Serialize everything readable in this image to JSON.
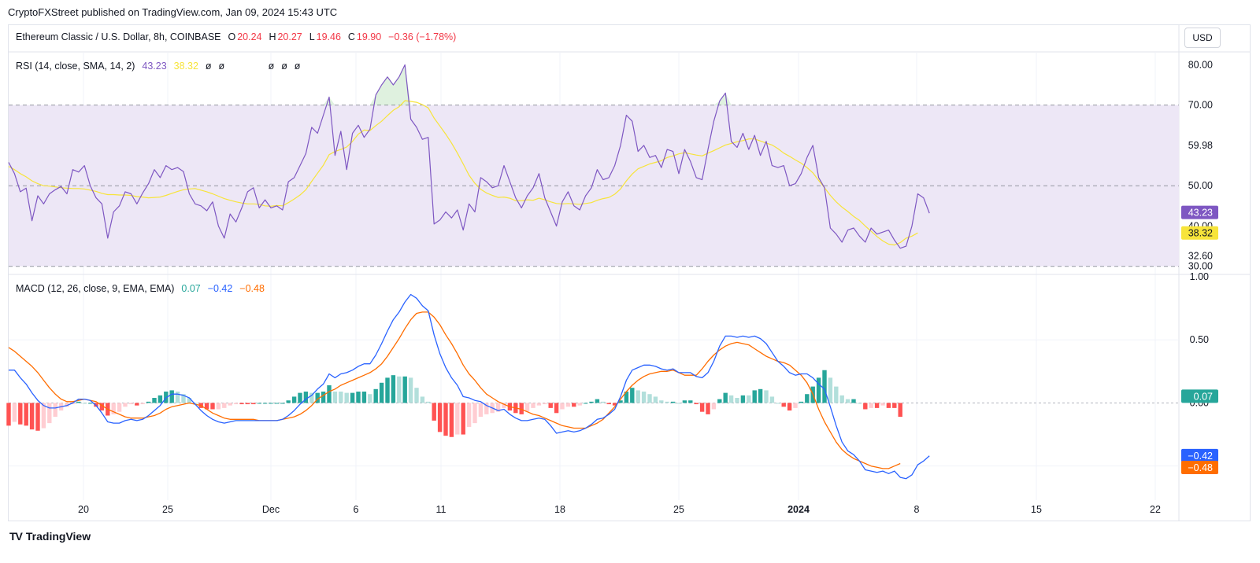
{
  "publisher": "CryptoFXStreet published on TradingView.com, Jan 09, 2024 15:43 UTC",
  "header": {
    "symbol": "Ethereum Classic / U.S. Dollar, 8h, COINBASE",
    "o_label": "O",
    "o_value": "20.24",
    "h_label": "H",
    "h_value": "20.27",
    "l_label": "L",
    "l_value": "19.46",
    "c_label": "C",
    "c_value": "19.90",
    "change": "−0.36 (−1.78%)",
    "currency_button": "USD"
  },
  "rsi_legend": {
    "label": "RSI (14, close, SMA, 14, 2)",
    "rsi": "43.23",
    "ma": "38.32",
    "na": [
      "ø",
      "ø",
      "ø",
      "ø",
      "ø"
    ]
  },
  "macd_legend": {
    "label": "MACD (12, 26, close, 9, EMA, EMA)",
    "hist": "0.07",
    "macd": "−0.42",
    "signal": "−0.48"
  },
  "footer": {
    "brand": "TradingView",
    "logo": "TV"
  },
  "colors": {
    "rsi": "#7e57c2",
    "rsi_ma": "#f7e43a",
    "macd": "#2962ff",
    "signal": "#ff6d00",
    "hist_up_strong": "#26a69a",
    "hist_up_weak": "#b2dfdb",
    "hist_down_strong": "#ff5252",
    "hist_down_weak": "#ffcdd2",
    "band": "#ede7f6",
    "neg": "#f23645"
  },
  "chart_data": [
    {
      "type": "line",
      "title": "RSI (14, close, SMA, 14, 2)",
      "x_axis": {
        "ticks": [
          "20",
          "25",
          "Dec",
          "6",
          "11",
          "18",
          "25",
          "2024",
          "8",
          "15",
          "22"
        ],
        "bold": [
          "2024"
        ]
      },
      "y_ticks": [
        "80.00",
        "70.00",
        "59.98",
        "50.00",
        "40.00",
        "32.60",
        "30.00"
      ],
      "ylim": [
        28,
        83
      ],
      "bands": {
        "upper": 70,
        "middle": 50,
        "lower": 30
      },
      "last_value_labels": [
        "43.23",
        "38.32"
      ],
      "series": [
        {
          "name": "RSI",
          "values": [
            55.8,
            53.0,
            48.5,
            49.4,
            41.3,
            47.5,
            45.5,
            48.0,
            49.0,
            49.8,
            48.0,
            54.0,
            53.4,
            55.0,
            50.0,
            47.0,
            45.5,
            37.0,
            43.5,
            45.0,
            48.5,
            48.0,
            45.5,
            48.2,
            50.5,
            54.0,
            52.0,
            55.0,
            54.0,
            54.5,
            53.5,
            48.0,
            45.5,
            45.0,
            43.8,
            46.0,
            40.0,
            37.0,
            43.0,
            41.0,
            44.5,
            48.5,
            49.5,
            44.5,
            46.5,
            44.5,
            45.0,
            44.0,
            51.0,
            52.0,
            55.0,
            58.0,
            64.5,
            63.0,
            67.5,
            72.0,
            57.5,
            63.5,
            54.0,
            63.0,
            65.0,
            62.0,
            64.0,
            72.5,
            75.0,
            77.0,
            75.0,
            77.0,
            80.0,
            66.5,
            64.5,
            61.5,
            62.0,
            40.5,
            41.5,
            43.5,
            42.0,
            44.0,
            39.0,
            45.5,
            43.5,
            52.0,
            51.0,
            49.5,
            50.0,
            55.0,
            51.0,
            47.0,
            44.5,
            47.5,
            49.5,
            53.0,
            47.0,
            43.5,
            40.0,
            46.0,
            48.5,
            45.0,
            44.0,
            47.5,
            49.5,
            54.0,
            51.5,
            52.0,
            55.0,
            60.0,
            67.5,
            66.0,
            58.5,
            60.0,
            57.0,
            57.5,
            54.5,
            59.0,
            58.5,
            53.0,
            59.0,
            56.0,
            52.0,
            51.5,
            59.0,
            66.0,
            71.0,
            73.0,
            61.0,
            59.5,
            63.0,
            59.0,
            62.5,
            57.5,
            61.0,
            55.0,
            54.5,
            55.0,
            50.0,
            50.5,
            53.0,
            57.0,
            60.0,
            52.0,
            49.5,
            39.5,
            38.0,
            36.0,
            39.0,
            39.5,
            37.5,
            36.0,
            39.5,
            38.0,
            38.5,
            39.0,
            36.5,
            34.5,
            35.0,
            40.0,
            48.0,
            47.0,
            43.2
          ]
        },
        {
          "name": "RSI MA",
          "values": [
            54.8,
            54.0,
            53.0,
            52.2,
            51.2,
            50.5,
            50.0,
            49.9,
            49.7,
            49.5,
            49.4,
            49.3,
            49.3,
            49.2,
            48.9,
            48.6,
            48.1,
            47.8,
            47.8,
            47.7,
            47.7,
            47.6,
            47.3,
            47.2,
            47.0,
            47.1,
            47.2,
            47.6,
            48.1,
            48.6,
            49.0,
            49.2,
            49.3,
            48.9,
            48.5,
            48.0,
            47.4,
            46.8,
            46.4,
            46.0,
            45.7,
            45.5,
            45.5,
            45.4,
            45.0,
            44.9,
            45.1,
            45.0,
            45.8,
            46.7,
            47.7,
            49.0,
            51.1,
            53.1,
            55.1,
            57.7,
            58.5,
            59.0,
            59.6,
            61.0,
            62.8,
            63.8,
            63.7,
            64.9,
            66.0,
            67.4,
            68.7,
            69.6,
            71.1,
            70.9,
            70.7,
            70.1,
            69.3,
            66.8,
            64.8,
            62.8,
            60.6,
            58.1,
            55.4,
            52.6,
            50.6,
            49.1,
            48.2,
            47.6,
            47.1,
            47.2,
            46.9,
            46.3,
            46.3,
            46.5,
            46.4,
            46.9,
            46.5,
            46.0,
            45.6,
            45.5,
            45.6,
            45.5,
            45.4,
            45.6,
            45.8,
            46.4,
            46.8,
            47.1,
            47.9,
            49.2,
            51.2,
            52.9,
            54.2,
            54.8,
            55.4,
            55.8,
            56.2,
            57.0,
            57.4,
            57.9,
            58.2,
            57.9,
            57.6,
            57.4,
            58.1,
            58.7,
            59.4,
            60.1,
            60.5,
            60.9,
            61.2,
            61.6,
            61.6,
            61.1,
            60.6,
            60.1,
            59.2,
            58.1,
            57.3,
            56.4,
            55.6,
            54.5,
            53.2,
            51.3,
            49.5,
            47.6,
            46.0,
            44.7,
            43.6,
            42.4,
            41.4,
            40.0,
            38.7,
            37.4,
            36.3,
            35.5,
            35.3,
            35.9,
            37.0,
            37.5,
            38.3
          ]
        }
      ]
    },
    {
      "type": "bar",
      "title": "MACD (12, 26, close, 9, EMA, EMA)",
      "y_ticks": [
        "1.00",
        "0.50",
        "0.00"
      ],
      "ylim": [
        -0.77,
        1.0
      ],
      "last_value_labels": [
        "0.07",
        "−0.42",
        "−0.48"
      ],
      "series": [
        {
          "name": "MACD",
          "values": [
            0.26,
            0.26,
            0.2,
            0.15,
            0.08,
            0.02,
            -0.02,
            -0.04,
            -0.04,
            -0.03,
            -0.02,
            0.0,
            0.03,
            0.03,
            0.02,
            -0.02,
            -0.08,
            -0.15,
            -0.16,
            -0.16,
            -0.14,
            -0.13,
            -0.14,
            -0.13,
            -0.1,
            -0.06,
            -0.02,
            0.04,
            0.07,
            0.07,
            0.06,
            0.04,
            -0.01,
            -0.06,
            -0.1,
            -0.13,
            -0.15,
            -0.16,
            -0.15,
            -0.14,
            -0.14,
            -0.14,
            -0.14,
            -0.14,
            -0.14,
            -0.14,
            -0.14,
            -0.13,
            -0.1,
            -0.06,
            -0.01,
            0.03,
            0.06,
            0.11,
            0.15,
            0.23,
            0.2,
            0.23,
            0.24,
            0.26,
            0.29,
            0.31,
            0.31,
            0.38,
            0.47,
            0.57,
            0.66,
            0.72,
            0.8,
            0.86,
            0.83,
            0.77,
            0.73,
            0.54,
            0.39,
            0.28,
            0.2,
            0.14,
            0.05,
            0.04,
            0.02,
            0.01,
            -0.02,
            -0.04,
            -0.06,
            -0.05,
            -0.09,
            -0.12,
            -0.14,
            -0.14,
            -0.13,
            -0.12,
            -0.13,
            -0.18,
            -0.24,
            -0.23,
            -0.22,
            -0.23,
            -0.22,
            -0.2,
            -0.17,
            -0.13,
            -0.12,
            -0.09,
            -0.05,
            0.05,
            0.18,
            0.26,
            0.28,
            0.3,
            0.3,
            0.29,
            0.27,
            0.26,
            0.27,
            0.24,
            0.24,
            0.24,
            0.21,
            0.2,
            0.24,
            0.33,
            0.45,
            0.53,
            0.53,
            0.52,
            0.53,
            0.52,
            0.53,
            0.51,
            0.47,
            0.4,
            0.33,
            0.29,
            0.24,
            0.22,
            0.23,
            0.23,
            0.2,
            0.15,
            0.11,
            -0.03,
            -0.18,
            -0.31,
            -0.38,
            -0.41,
            -0.46,
            -0.53,
            -0.54,
            -0.55,
            -0.54,
            -0.56,
            -0.54,
            -0.59,
            -0.6,
            -0.57,
            -0.49,
            -0.46,
            -0.42
          ]
        },
        {
          "name": "Signal",
          "values": [
            0.44,
            0.41,
            0.37,
            0.33,
            0.29,
            0.24,
            0.18,
            0.12,
            0.07,
            0.03,
            0.01,
            0.01,
            0.02,
            0.03,
            0.02,
            0.01,
            -0.02,
            -0.05,
            -0.07,
            -0.09,
            -0.11,
            -0.12,
            -0.12,
            -0.12,
            -0.11,
            -0.1,
            -0.08,
            -0.05,
            -0.03,
            -0.02,
            -0.01,
            0.0,
            -0.01,
            -0.02,
            -0.05,
            -0.08,
            -0.1,
            -0.12,
            -0.13,
            -0.13,
            -0.13,
            -0.13,
            -0.13,
            -0.14,
            -0.14,
            -0.14,
            -0.14,
            -0.13,
            -0.12,
            -0.11,
            -0.09,
            -0.06,
            -0.02,
            0.03,
            0.06,
            0.09,
            0.11,
            0.14,
            0.16,
            0.18,
            0.2,
            0.22,
            0.24,
            0.27,
            0.31,
            0.37,
            0.44,
            0.51,
            0.59,
            0.66,
            0.71,
            0.72,
            0.72,
            0.68,
            0.62,
            0.54,
            0.47,
            0.39,
            0.3,
            0.23,
            0.18,
            0.12,
            0.07,
            0.04,
            0.01,
            -0.01,
            -0.03,
            -0.04,
            -0.05,
            -0.07,
            -0.09,
            -0.1,
            -0.12,
            -0.14,
            -0.16,
            -0.18,
            -0.19,
            -0.2,
            -0.2,
            -0.2,
            -0.18,
            -0.16,
            -0.13,
            -0.08,
            -0.03,
            0.03,
            0.09,
            0.14,
            0.18,
            0.21,
            0.23,
            0.24,
            0.25,
            0.25,
            0.26,
            0.24,
            0.22,
            0.22,
            0.22,
            0.27,
            0.33,
            0.38,
            0.42,
            0.45,
            0.47,
            0.48,
            0.47,
            0.46,
            0.43,
            0.4,
            0.37,
            0.35,
            0.33,
            0.32,
            0.3,
            0.26,
            0.22,
            0.16,
            0.07,
            -0.05,
            -0.15,
            -0.23,
            -0.31,
            -0.37,
            -0.41,
            -0.44,
            -0.46,
            -0.48,
            -0.5,
            -0.51,
            -0.52,
            -0.52,
            -0.5,
            -0.48
          ]
        }
      ]
    }
  ]
}
